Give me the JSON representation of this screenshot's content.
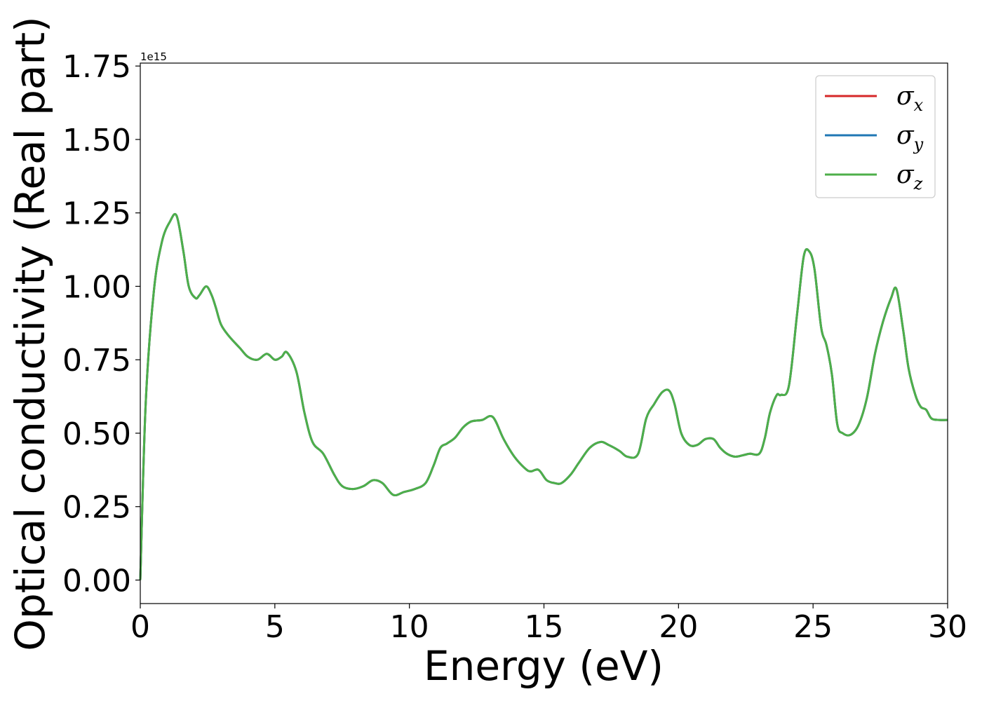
{
  "chart_data": {
    "type": "line",
    "title": "",
    "xlabel": "Energy (eV)",
    "ylabel": "Optical conductivity (Real part)",
    "y_offset_text": "1e15",
    "xlim": [
      0,
      30
    ],
    "ylim": [
      -0.08,
      1.76
    ],
    "xticks": [
      0,
      5,
      10,
      15,
      20,
      25,
      30
    ],
    "xtick_labels": [
      "0",
      "5",
      "10",
      "15",
      "20",
      "25",
      "30"
    ],
    "yticks": [
      0.0,
      0.25,
      0.5,
      0.75,
      1.0,
      1.25,
      1.5,
      1.75
    ],
    "ytick_labels": [
      "0.00",
      "0.25",
      "0.50",
      "0.75",
      "1.00",
      "1.25",
      "1.50",
      "1.75"
    ],
    "grid": false,
    "legend_position": "top-right",
    "series": [
      {
        "name": "σx",
        "symbol": "σ",
        "subscript": "x",
        "color": "#d62728"
      },
      {
        "name": "σy",
        "symbol": "σ",
        "subscript": "y",
        "color": "#1f77b4"
      },
      {
        "name": "σz",
        "symbol": "σ",
        "subscript": "z",
        "color": "#4daf4a"
      }
    ],
    "x": [
      0,
      0.2,
      0.5,
      0.8,
      1.1,
      1.35,
      1.6,
      1.8,
      2.05,
      2.2,
      2.45,
      2.65,
      2.8,
      3.0,
      3.3,
      3.7,
      4.0,
      4.35,
      4.7,
      5.0,
      5.25,
      5.45,
      5.8,
      6.1,
      6.4,
      6.8,
      7.2,
      7.5,
      7.9,
      8.3,
      8.65,
      9.0,
      9.4,
      9.8,
      10.2,
      10.6,
      10.9,
      11.15,
      11.4,
      11.7,
      12.0,
      12.3,
      12.7,
      13.1,
      13.5,
      13.9,
      14.3,
      14.5,
      14.8,
      15.1,
      15.4,
      15.65,
      16.0,
      16.3,
      16.7,
      17.1,
      17.4,
      17.8,
      18.1,
      18.5,
      18.8,
      19.1,
      19.4,
      19.65,
      19.85,
      20.1,
      20.4,
      20.7,
      21.0,
      21.3,
      21.55,
      21.8,
      22.1,
      22.4,
      22.65,
      23.0,
      23.2,
      23.4,
      23.65,
      23.8,
      24.1,
      24.4,
      24.65,
      24.85,
      25.05,
      25.3,
      25.5,
      25.7,
      25.9,
      26.1,
      26.4,
      26.7,
      27.0,
      27.3,
      27.6,
      27.9,
      28.1,
      28.35,
      28.55,
      28.8,
      29.0,
      29.2,
      29.4,
      29.7,
      30.0
    ],
    "y_values": [
      0.0,
      0.6,
      0.98,
      1.15,
      1.22,
      1.24,
      1.12,
      1.0,
      0.96,
      0.97,
      1.0,
      0.97,
      0.93,
      0.87,
      0.83,
      0.79,
      0.76,
      0.75,
      0.77,
      0.75,
      0.76,
      0.775,
      0.71,
      0.57,
      0.47,
      0.43,
      0.36,
      0.32,
      0.31,
      0.32,
      0.34,
      0.33,
      0.29,
      0.3,
      0.31,
      0.33,
      0.39,
      0.45,
      0.465,
      0.485,
      0.52,
      0.54,
      0.545,
      0.555,
      0.48,
      0.42,
      0.38,
      0.37,
      0.375,
      0.34,
      0.33,
      0.33,
      0.36,
      0.4,
      0.45,
      0.47,
      0.46,
      0.44,
      0.42,
      0.43,
      0.55,
      0.6,
      0.64,
      0.645,
      0.6,
      0.5,
      0.46,
      0.46,
      0.48,
      0.48,
      0.45,
      0.43,
      0.42,
      0.425,
      0.43,
      0.43,
      0.48,
      0.57,
      0.63,
      0.63,
      0.66,
      0.9,
      1.1,
      1.12,
      1.06,
      0.86,
      0.8,
      0.7,
      0.53,
      0.5,
      0.495,
      0.53,
      0.62,
      0.77,
      0.88,
      0.96,
      0.99,
      0.85,
      0.72,
      0.63,
      0.59,
      0.58,
      0.55,
      0.545,
      0.545
    ]
  }
}
